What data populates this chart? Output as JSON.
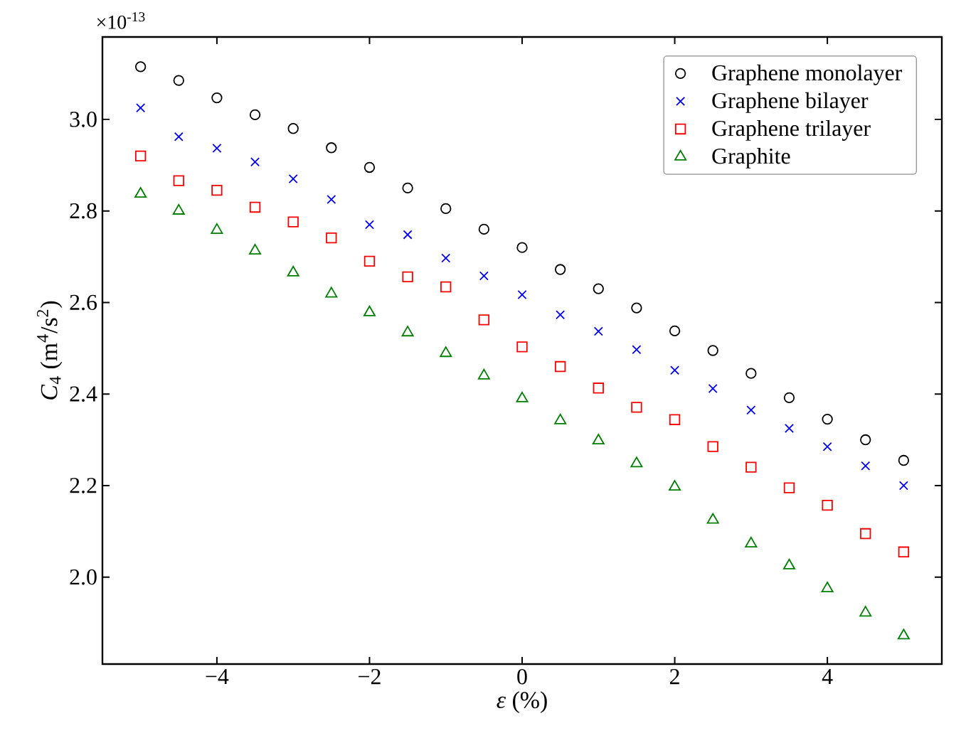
{
  "chart_data": {
    "type": "scatter",
    "xlabel": "*ε* (%)",
    "ylabel": "*C*$_{4}$ (m$^{4}$/s$^{2}$)",
    "annotations": [
      "×10$^{-13}$"
    ],
    "x": [
      -5,
      -4.5,
      -4,
      -3.5,
      -3,
      -2.5,
      -2,
      -1.5,
      -1,
      -0.5,
      0,
      0.5,
      1,
      1.5,
      2,
      2.5,
      3,
      3.5,
      4,
      4.5,
      5
    ],
    "series": [
      {
        "name": "Graphene monolayer",
        "color": "#000000",
        "marker": "circle",
        "values": [
          3.115,
          3.085,
          3.047,
          3.01,
          2.98,
          2.938,
          2.895,
          2.85,
          2.805,
          2.76,
          2.72,
          2.672,
          2.63,
          2.588,
          2.538,
          2.495,
          2.445,
          2.392,
          2.345,
          2.3,
          2.255
        ]
      },
      {
        "name": "Graphene bilayer",
        "color": "#0000ff",
        "marker": "cross",
        "values": [
          3.025,
          2.962,
          2.937,
          2.907,
          2.87,
          2.825,
          2.77,
          2.748,
          2.697,
          2.658,
          2.617,
          2.573,
          2.537,
          2.497,
          2.452,
          2.412,
          2.365,
          2.325,
          2.285,
          2.243,
          2.2
        ]
      },
      {
        "name": "Graphene trilayer",
        "color": "#ff0000",
        "marker": "square",
        "values": [
          2.92,
          2.866,
          2.845,
          2.808,
          2.776,
          2.741,
          2.69,
          2.656,
          2.634,
          2.562,
          2.503,
          2.46,
          2.413,
          2.371,
          2.344,
          2.285,
          2.24,
          2.195,
          2.157,
          2.095,
          2.055
        ]
      },
      {
        "name": "Graphite",
        "color": "#008000",
        "marker": "triangle",
        "values": [
          2.837,
          2.8,
          2.758,
          2.713,
          2.665,
          2.619,
          2.578,
          2.534,
          2.489,
          2.44,
          2.39,
          2.342,
          2.298,
          2.248,
          2.197,
          2.125,
          2.073,
          2.025,
          1.975,
          1.922,
          1.872
        ]
      }
    ],
    "xlim": [
      -5.5,
      5.5
    ],
    "ylim": [
      1.81,
      3.18
    ],
    "xticks": [
      {
        "value": -4,
        "label": "−4"
      },
      {
        "value": -2,
        "label": "−2"
      },
      0,
      2,
      4
    ],
    "yticks": [
      {
        "value": 2.0,
        "label": "2.0"
      },
      {
        "value": 2.2,
        "label": "2.2"
      },
      {
        "value": 2.4,
        "label": "2.4"
      },
      {
        "value": 2.6,
        "label": "2.6"
      },
      {
        "value": 2.8,
        "label": "2.8"
      },
      {
        "value": 3.0,
        "label": "3.0"
      }
    ],
    "legend": "top right",
    "grid": false
  }
}
